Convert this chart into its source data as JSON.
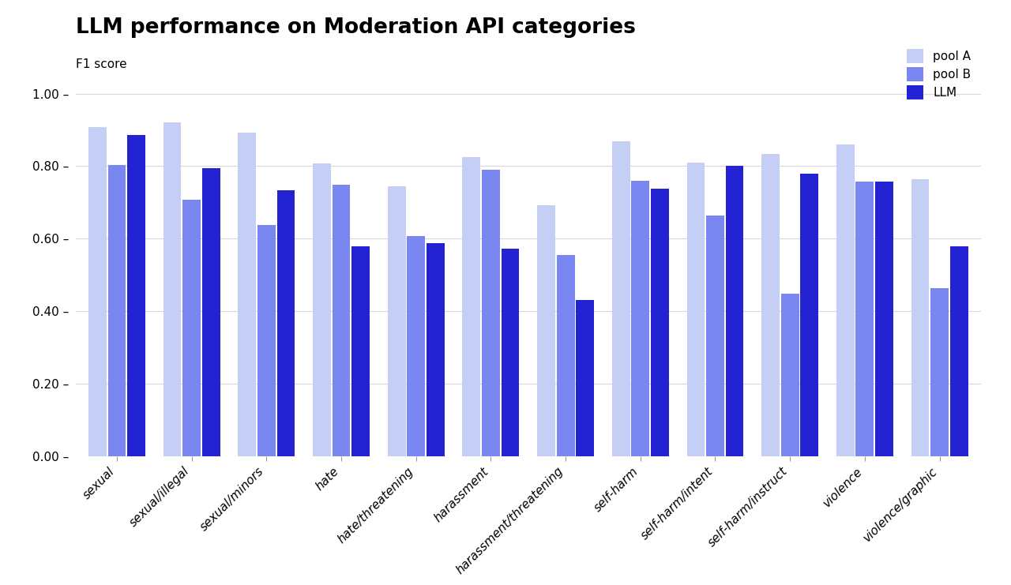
{
  "title": "LLM performance on Moderation API categories",
  "ylabel": "F1 score",
  "categories": [
    "sexual",
    "sexual/illegal",
    "sexual/minors",
    "hate",
    "hate/threatening",
    "harassment",
    "harassment/threatening",
    "self-harm",
    "self-harm/intent",
    "self-harm/instruct",
    "violence",
    "violence/graphic"
  ],
  "pool_A": [
    0.907,
    0.92,
    0.893,
    0.808,
    0.745,
    0.824,
    0.692,
    0.868,
    0.81,
    0.833,
    0.86,
    0.765
  ],
  "pool_B": [
    0.803,
    0.708,
    0.638,
    0.748,
    0.607,
    0.789,
    0.556,
    0.76,
    0.663,
    0.449,
    0.758,
    0.463
  ],
  "llm": [
    0.886,
    0.795,
    0.733,
    0.578,
    0.588,
    0.572,
    0.432,
    0.738,
    0.8,
    0.78,
    0.758,
    0.578
  ],
  "color_A": "#c5cef5",
  "color_B": "#7b87f0",
  "color_LLM": "#2323d4",
  "ylim": [
    0,
    1.0
  ],
  "yticks": [
    0.0,
    0.2,
    0.4,
    0.6,
    0.8,
    1.0
  ],
  "ytick_labels": [
    "0.00 –",
    "0.20 –",
    "0.40 –",
    "0.60 –",
    "0.80 –",
    "1.00 –"
  ],
  "background_color": "#ffffff",
  "grid_color": "#d8d8d8",
  "title_fontsize": 19,
  "subtitle_fontsize": 11,
  "tick_fontsize": 11,
  "legend_fontsize": 11,
  "bar_width": 0.24,
  "bar_gap": 0.02
}
